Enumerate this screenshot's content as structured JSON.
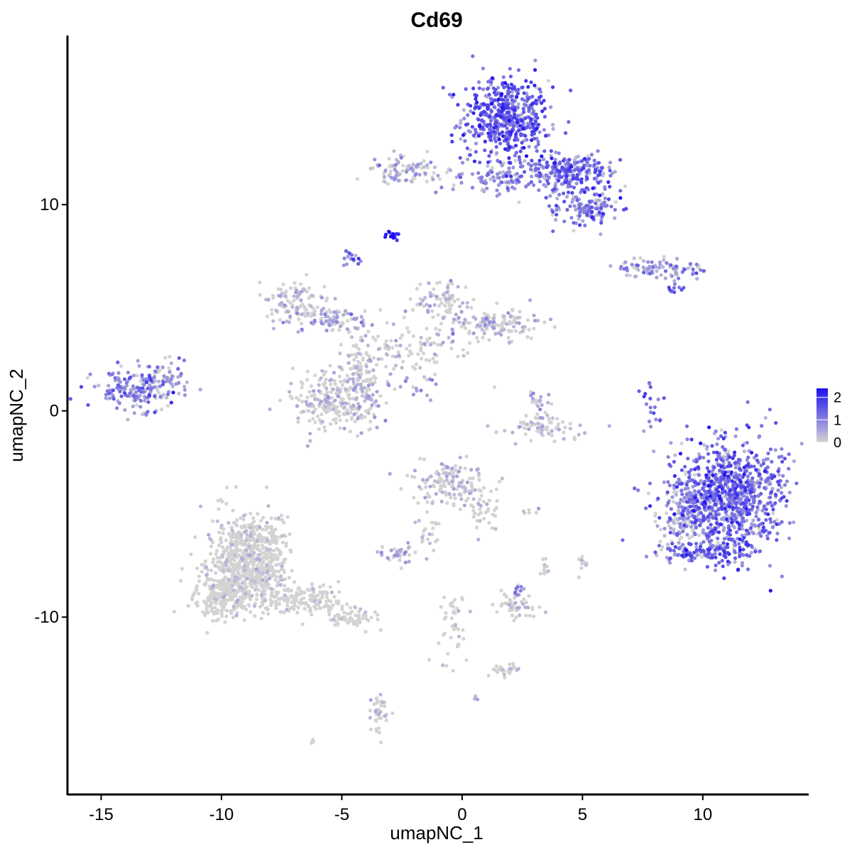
{
  "chart_data": {
    "type": "scatter",
    "title": "Cd69",
    "xlabel": "umapNC_1",
    "ylabel": "umapNC_2",
    "xlim": [
      -16.4,
      14.4
    ],
    "ylim": [
      -18.6,
      18.2
    ],
    "x_ticks": [
      -15,
      -10,
      -5,
      0,
      5,
      10
    ],
    "x_tick_labels": [
      "-15",
      "-10",
      "-5",
      "0",
      "5",
      "10"
    ],
    "y_ticks": [
      -10,
      0,
      10
    ],
    "y_tick_labels": [
      "-10",
      "0",
      "10"
    ],
    "grid": false,
    "color_scale": {
      "low_color": "#d3d3d3",
      "high_color": "#1f10f0",
      "min": 0,
      "max": 2.4,
      "ticks": [
        0,
        1,
        2
      ],
      "tick_labels": [
        "0",
        "1",
        "2"
      ],
      "placement": "right"
    },
    "clusters": [
      {
        "cx": 1.8,
        "cy": 14.2,
        "sx": 0.9,
        "sy": 1.0,
        "n": 520,
        "expr_mean": 1.3,
        "expr_sd": 0.5
      },
      {
        "cx": 4.5,
        "cy": 11.6,
        "sx": 1.0,
        "sy": 0.45,
        "n": 240,
        "expr_mean": 1.1,
        "expr_sd": 0.5
      },
      {
        "cx": 5.2,
        "cy": 9.9,
        "sx": 0.7,
        "sy": 0.5,
        "n": 130,
        "expr_mean": 1.1,
        "expr_sd": 0.5
      },
      {
        "cx": 1.5,
        "cy": 11.3,
        "sx": 1.2,
        "sy": 0.4,
        "n": 120,
        "expr_mean": 0.7,
        "expr_sd": 0.5
      },
      {
        "cx": -2.5,
        "cy": 11.7,
        "sx": 0.7,
        "sy": 0.35,
        "n": 90,
        "expr_mean": 0.3,
        "expr_sd": 0.4
      },
      {
        "cx": -2.9,
        "cy": 8.5,
        "sx": 0.15,
        "sy": 0.12,
        "n": 15,
        "expr_mean": 2.2,
        "expr_sd": 0.2
      },
      {
        "cx": -4.6,
        "cy": 7.4,
        "sx": 0.18,
        "sy": 0.2,
        "n": 15,
        "expr_mean": 1.2,
        "expr_sd": 0.4
      },
      {
        "cx": 8.3,
        "cy": 6.9,
        "sx": 1.0,
        "sy": 0.2,
        "n": 90,
        "expr_mean": 0.6,
        "expr_sd": 0.5
      },
      {
        "cx": 8.8,
        "cy": 6.1,
        "sx": 0.3,
        "sy": 0.3,
        "n": 10,
        "expr_mean": 1.3,
        "expr_sd": 0.3
      },
      {
        "cx": -7.0,
        "cy": 5.3,
        "sx": 0.7,
        "sy": 0.5,
        "n": 110,
        "expr_mean": 0.15,
        "expr_sd": 0.3
      },
      {
        "cx": -5.3,
        "cy": 4.4,
        "sx": 0.8,
        "sy": 0.35,
        "n": 80,
        "expr_mean": 0.3,
        "expr_sd": 0.4
      },
      {
        "cx": -0.8,
        "cy": 5.4,
        "sx": 0.6,
        "sy": 0.5,
        "n": 80,
        "expr_mean": 0.15,
        "expr_sd": 0.3
      },
      {
        "cx": 1.5,
        "cy": 4.2,
        "sx": 1.0,
        "sy": 0.4,
        "n": 130,
        "expr_mean": 0.15,
        "expr_sd": 0.3
      },
      {
        "cx": -2.0,
        "cy": 3.0,
        "sx": 1.4,
        "sy": 0.6,
        "n": 110,
        "expr_mean": 0.1,
        "expr_sd": 0.25
      },
      {
        "cx": -4.3,
        "cy": 2.0,
        "sx": 0.4,
        "sy": 1.0,
        "n": 80,
        "expr_mean": 0.15,
        "expr_sd": 0.3
      },
      {
        "cx": -5.6,
        "cy": 0.4,
        "sx": 0.7,
        "sy": 0.7,
        "n": 200,
        "expr_mean": 0.1,
        "expr_sd": 0.25
      },
      {
        "cx": -4.0,
        "cy": 0.7,
        "sx": 0.5,
        "sy": 0.6,
        "n": 70,
        "expr_mean": 0.2,
        "expr_sd": 0.35
      },
      {
        "cx": -1.8,
        "cy": 1.2,
        "sx": 0.5,
        "sy": 0.3,
        "n": 15,
        "expr_mean": 0.6,
        "expr_sd": 0.4
      },
      {
        "cx": -13.6,
        "cy": 1.0,
        "sx": 0.8,
        "sy": 0.45,
        "n": 160,
        "expr_mean": 0.8,
        "expr_sd": 0.55
      },
      {
        "cx": -12.4,
        "cy": 1.6,
        "sx": 0.6,
        "sy": 0.5,
        "n": 60,
        "expr_mean": 0.6,
        "expr_sd": 0.5
      },
      {
        "cx": 3.5,
        "cy": -0.8,
        "sx": 1.0,
        "sy": 0.3,
        "n": 70,
        "expr_mean": 0.1,
        "expr_sd": 0.25
      },
      {
        "cx": 3.3,
        "cy": 0.5,
        "sx": 0.25,
        "sy": 0.4,
        "n": 20,
        "expr_mean": 0.3,
        "expr_sd": 0.4
      },
      {
        "cx": 7.9,
        "cy": 0.4,
        "sx": 0.25,
        "sy": 0.5,
        "n": 20,
        "expr_mean": 1.1,
        "expr_sd": 0.4
      },
      {
        "cx": 11.0,
        "cy": -4.2,
        "sx": 1.2,
        "sy": 1.4,
        "n": 950,
        "expr_mean": 1.1,
        "expr_sd": 0.55
      },
      {
        "cx": 9.0,
        "cy": -5.4,
        "sx": 0.4,
        "sy": 0.8,
        "n": 90,
        "expr_mean": 0.4,
        "expr_sd": 0.45
      },
      {
        "cx": 10.0,
        "cy": -6.8,
        "sx": 0.9,
        "sy": 0.25,
        "n": 100,
        "expr_mean": 1.3,
        "expr_sd": 0.45
      },
      {
        "cx": -0.6,
        "cy": -3.6,
        "sx": 0.7,
        "sy": 0.6,
        "n": 140,
        "expr_mean": 0.15,
        "expr_sd": 0.3
      },
      {
        "cx": 0.8,
        "cy": -4.5,
        "sx": 0.4,
        "sy": 0.7,
        "n": 40,
        "expr_mean": 0.1,
        "expr_sd": 0.25
      },
      {
        "cx": -1.4,
        "cy": -6.0,
        "sx": 0.25,
        "sy": 0.6,
        "n": 20,
        "expr_mean": 0.05,
        "expr_sd": 0.2
      },
      {
        "cx": -2.6,
        "cy": -6.9,
        "sx": 0.4,
        "sy": 0.25,
        "n": 35,
        "expr_mean": 0.3,
        "expr_sd": 0.4
      },
      {
        "cx": -8.8,
        "cy": -7.2,
        "sx": 0.8,
        "sy": 1.1,
        "n": 700,
        "expr_mean": 0.05,
        "expr_sd": 0.15
      },
      {
        "cx": -10.0,
        "cy": -8.8,
        "sx": 0.6,
        "sy": 0.6,
        "n": 220,
        "expr_mean": 0.05,
        "expr_sd": 0.15
      },
      {
        "cx": -6.5,
        "cy": -9.2,
        "sx": 1.0,
        "sy": 0.35,
        "n": 160,
        "expr_mean": 0.05,
        "expr_sd": 0.15
      },
      {
        "cx": -4.6,
        "cy": -10.0,
        "sx": 0.5,
        "sy": 0.25,
        "n": 60,
        "expr_mean": 0.05,
        "expr_sd": 0.15
      },
      {
        "cx": 2.3,
        "cy": -9.5,
        "sx": 0.5,
        "sy": 0.3,
        "n": 50,
        "expr_mean": 0.1,
        "expr_sd": 0.25
      },
      {
        "cx": 2.4,
        "cy": -8.7,
        "sx": 0.12,
        "sy": 0.2,
        "n": 10,
        "expr_mean": 0.5,
        "expr_sd": 0.4
      },
      {
        "cx": 3.4,
        "cy": -7.4,
        "sx": 0.12,
        "sy": 0.25,
        "n": 10,
        "expr_mean": 0.05,
        "expr_sd": 0.2
      },
      {
        "cx": 5.0,
        "cy": -7.3,
        "sx": 0.12,
        "sy": 0.25,
        "n": 10,
        "expr_mean": 0.05,
        "expr_sd": 0.2
      },
      {
        "cx": 2.9,
        "cy": -4.9,
        "sx": 0.2,
        "sy": 0.1,
        "n": 6,
        "expr_mean": 0.4,
        "expr_sd": 0.4
      },
      {
        "cx": -0.4,
        "cy": -10.5,
        "sx": 0.3,
        "sy": 1.0,
        "n": 40,
        "expr_mean": 0.05,
        "expr_sd": 0.2
      },
      {
        "cx": 1.8,
        "cy": -12.5,
        "sx": 0.4,
        "sy": 0.15,
        "n": 30,
        "expr_mean": 0.05,
        "expr_sd": 0.2
      },
      {
        "cx": -3.5,
        "cy": -14.7,
        "sx": 0.2,
        "sy": 0.5,
        "n": 40,
        "expr_mean": 0.05,
        "expr_sd": 0.2
      },
      {
        "cx": -6.2,
        "cy": -16.0,
        "sx": 0.08,
        "sy": 0.08,
        "n": 4,
        "expr_mean": 0.0,
        "expr_sd": 0.1
      },
      {
        "cx": 0.6,
        "cy": -13.9,
        "sx": 0.08,
        "sy": 0.08,
        "n": 3,
        "expr_mean": 0.6,
        "expr_sd": 0.3
      }
    ]
  }
}
